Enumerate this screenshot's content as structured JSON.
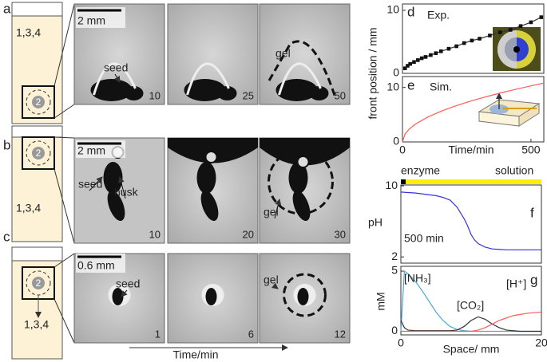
{
  "panels": {
    "a": {
      "letter": "a",
      "tube_label": "1,3,4",
      "seed_label": "2",
      "scale_bar": "2 mm",
      "images": [
        {
          "frame": 10,
          "labels": [
            "seed"
          ]
        },
        {
          "frame": 25
        },
        {
          "frame": 50,
          "labels": [
            "gel"
          ]
        }
      ]
    },
    "b": {
      "letter": "b",
      "tube_label": "1,3,4",
      "seed_label": "2",
      "scale_bar": "2 mm",
      "images": [
        {
          "frame": 10,
          "labels": [
            "seed",
            "husk"
          ]
        },
        {
          "frame": 20
        },
        {
          "frame": 30,
          "labels": [
            "gel"
          ]
        }
      ]
    },
    "c": {
      "letter": "c",
      "tube_label": "1,3,4",
      "seed_label": "2",
      "scale_bar": "0.6 mm",
      "images": [
        {
          "frame": 1,
          "labels": [
            "seed"
          ]
        },
        {
          "frame": 6
        },
        {
          "frame": 12,
          "labels": [
            "gel"
          ]
        }
      ]
    },
    "time_axis_label": "Time/min"
  },
  "chart_data": [
    {
      "type": "line",
      "letter": "d",
      "annotation": "Exp.",
      "ylabel": "front position / mm",
      "marker": "square",
      "color": "#333333",
      "x": [
        10,
        20,
        30,
        45,
        60,
        75,
        90,
        110,
        130,
        150,
        180,
        210,
        240,
        270,
        300,
        340,
        380,
        420,
        460,
        500,
        540
      ],
      "values": [
        0.8,
        1.2,
        1.5,
        1.8,
        2.1,
        2.4,
        2.6,
        2.9,
        3.2,
        3.5,
        3.9,
        4.3,
        4.8,
        5.2,
        5.5,
        6.0,
        6.5,
        6.9,
        7.5,
        8.1,
        8.9
      ],
      "xlim": [
        0,
        550
      ],
      "ylim": [
        0,
        11
      ],
      "yticks": [
        0,
        10
      ]
    },
    {
      "type": "line",
      "letter": "e",
      "annotation": "Sim.",
      "xlabel": "Time/min",
      "color": "#ff5a5a",
      "x": [
        0,
        10,
        25,
        50,
        100,
        150,
        200,
        250,
        300,
        350,
        400,
        450,
        500,
        550
      ],
      "values": [
        0,
        1.45,
        2.3,
        3.25,
        4.6,
        5.63,
        6.5,
        7.27,
        7.97,
        8.6,
        9.2,
        9.76,
        10.29,
        10.79
      ],
      "xlim": [
        0,
        550
      ],
      "ylim": [
        0,
        12
      ],
      "xticks": [
        0,
        500
      ],
      "yticks": [
        0,
        10
      ]
    },
    {
      "type": "line",
      "letter": "f",
      "ylabel": "pH",
      "annotation": "500 min",
      "color": "#3333dd",
      "regions": [
        {
          "name": "enzyme",
          "color": "#000000"
        },
        {
          "name": "solution",
          "color": "#ffee00"
        }
      ],
      "x": [
        0,
        1,
        2,
        3,
        4,
        5,
        6,
        7,
        8,
        9,
        9.5,
        10,
        10.5,
        11,
        12,
        13,
        14,
        15,
        16,
        17,
        18,
        19,
        20
      ],
      "values": [
        9.3,
        9.25,
        9.2,
        9.1,
        9.0,
        8.9,
        8.7,
        8.4,
        7.6,
        6.3,
        5.5,
        4.5,
        3.9,
        3.5,
        3.1,
        2.9,
        2.85,
        2.8,
        2.8,
        2.8,
        2.8,
        2.8,
        2.8
      ],
      "xlim": [
        0,
        20
      ],
      "ylim": [
        1.3,
        10.1
      ],
      "yticks": [
        2,
        10
      ]
    },
    {
      "type": "line",
      "letter": "g",
      "ylabel": "mM",
      "xlabel": "Space/ mm",
      "x": [
        0,
        0.5,
        1,
        2,
        3,
        4,
        5,
        6,
        7,
        8,
        9,
        10,
        11,
        12,
        13,
        14,
        15,
        16,
        17,
        18,
        19,
        20
      ],
      "series": [
        {
          "name": "[NH₃]",
          "color": "#4aa8d8",
          "values": [
            0,
            5,
            4.8,
            4.2,
            3.4,
            2.5,
            1.6,
            0.9,
            0.4,
            0.15,
            0.05,
            0,
            0,
            0,
            0,
            0,
            0,
            0,
            0,
            0,
            0,
            0
          ]
        },
        {
          "name": "[CO₂]",
          "color": "#333333",
          "values": [
            0.9,
            0.3,
            0.1,
            0.05,
            0.05,
            0.05,
            0.05,
            0.05,
            0.05,
            0.1,
            0.4,
            0.9,
            1.2,
            1.0,
            0.6,
            0.3,
            0.1,
            0.05,
            0,
            0,
            0,
            0
          ]
        },
        {
          "name": "[H⁺]",
          "color": "#ff5a5a",
          "values": [
            0,
            0,
            0,
            0,
            0,
            0,
            0,
            0,
            0,
            0,
            0,
            0,
            0.1,
            0.3,
            0.6,
            0.9,
            1.1,
            1.3,
            1.4,
            1.5,
            1.55,
            1.6
          ]
        }
      ],
      "xlim": [
        0,
        20
      ],
      "ylim": [
        -0.3,
        5.4
      ],
      "xticks": [
        0,
        20
      ],
      "yticks": [
        0,
        5
      ]
    }
  ]
}
